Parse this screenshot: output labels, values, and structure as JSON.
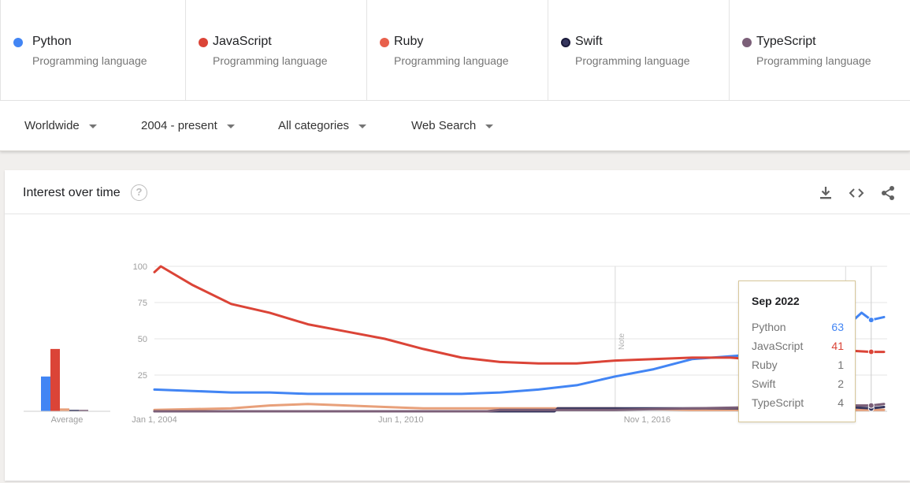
{
  "terms": [
    {
      "name": "Python",
      "kind": "Programming language",
      "color": "#4285f4"
    },
    {
      "name": "JavaScript",
      "kind": "Programming language",
      "color": "#db4437"
    },
    {
      "name": "Ruby",
      "kind": "Programming language",
      "color": "#e8604c"
    },
    {
      "name": "Swift",
      "kind": "Programming language",
      "color": "#36365e"
    },
    {
      "name": "TypeScript",
      "kind": "Programming language",
      "color": "#7b5f78"
    }
  ],
  "filters": {
    "region": "Worldwide",
    "time": "2004 - present",
    "category": "All categories",
    "property": "Web Search"
  },
  "card": {
    "title": "Interest over time",
    "help_glyph": "?",
    "tools": [
      "download-icon",
      "embed-icon",
      "share-icon"
    ]
  },
  "tooltip": {
    "title": "Sep 2022",
    "rows": [
      {
        "label": "Python",
        "value": "63",
        "color": "#4285f4"
      },
      {
        "label": "JavaScript",
        "value": "41",
        "color": "#db4437"
      },
      {
        "label": "Ruby",
        "value": "1",
        "color": "#757575"
      },
      {
        "label": "Swift",
        "value": "2",
        "color": "#757575"
      },
      {
        "label": "TypeScript",
        "value": "4",
        "color": "#757575"
      }
    ]
  },
  "chart_data": {
    "type": "line",
    "title": "",
    "xlabel": "",
    "ylabel": "",
    "ylim": [
      0,
      100
    ],
    "yticks": [
      "100",
      "75",
      "50",
      "25"
    ],
    "xticks": [
      "Jan 1, 2004",
      "Jun 1, 2010",
      "Nov 1, 2016"
    ],
    "xrange": [
      "2004-01",
      "2023-01"
    ],
    "grid": true,
    "notes": [
      {
        "x": "2016-01",
        "label": "Note"
      },
      {
        "x": "2022-01",
        "label": "Note"
      }
    ],
    "hover_x": "2022-09",
    "average_label": "Average",
    "average": [
      {
        "name": "Python",
        "value": 24
      },
      {
        "name": "JavaScript",
        "value": 43
      },
      {
        "name": "Ruby",
        "value": 2
      },
      {
        "name": "Swift",
        "value": 1
      },
      {
        "name": "TypeScript",
        "value": 1
      }
    ],
    "series": [
      {
        "name": "Python",
        "color": "#4285f4",
        "points": [
          [
            "2004-01",
            15
          ],
          [
            "2005-01",
            14
          ],
          [
            "2006-01",
            13
          ],
          [
            "2007-01",
            13
          ],
          [
            "2008-01",
            12
          ],
          [
            "2009-01",
            12
          ],
          [
            "2010-01",
            12
          ],
          [
            "2011-01",
            12
          ],
          [
            "2012-01",
            12
          ],
          [
            "2013-01",
            13
          ],
          [
            "2014-01",
            15
          ],
          [
            "2015-01",
            18
          ],
          [
            "2016-01",
            24
          ],
          [
            "2017-01",
            29
          ],
          [
            "2018-01",
            36
          ],
          [
            "2019-01",
            38
          ],
          [
            "2020-01",
            40
          ],
          [
            "2021-01",
            48
          ],
          [
            "2022-01",
            58
          ],
          [
            "2022-06",
            68
          ],
          [
            "2022-09",
            63
          ],
          [
            "2023-01",
            65
          ]
        ]
      },
      {
        "name": "JavaScript",
        "color": "#db4437",
        "points": [
          [
            "2004-01",
            96
          ],
          [
            "2004-03",
            100
          ],
          [
            "2005-01",
            87
          ],
          [
            "2006-01",
            74
          ],
          [
            "2007-01",
            68
          ],
          [
            "2008-01",
            60
          ],
          [
            "2009-01",
            55
          ],
          [
            "2010-01",
            50
          ],
          [
            "2011-01",
            43
          ],
          [
            "2012-01",
            37
          ],
          [
            "2013-01",
            34
          ],
          [
            "2014-01",
            33
          ],
          [
            "2015-01",
            33
          ],
          [
            "2016-01",
            35
          ],
          [
            "2017-01",
            36
          ],
          [
            "2018-01",
            37
          ],
          [
            "2019-01",
            37
          ],
          [
            "2020-01",
            35
          ],
          [
            "2021-01",
            38
          ],
          [
            "2022-01",
            42
          ],
          [
            "2022-09",
            41
          ],
          [
            "2023-01",
            41
          ]
        ]
      },
      {
        "name": "Ruby",
        "color": "#e8a07a",
        "points": [
          [
            "2004-01",
            1
          ],
          [
            "2006-01",
            2
          ],
          [
            "2007-01",
            4
          ],
          [
            "2008-01",
            5
          ],
          [
            "2009-01",
            4
          ],
          [
            "2010-01",
            3
          ],
          [
            "2011-01",
            2
          ],
          [
            "2012-01",
            2
          ],
          [
            "2014-01",
            2
          ],
          [
            "2016-01",
            2
          ],
          [
            "2018-01",
            1
          ],
          [
            "2020-01",
            1
          ],
          [
            "2023-01",
            1
          ]
        ]
      },
      {
        "name": "Swift",
        "color": "#36365e",
        "points": [
          [
            "2004-01",
            0
          ],
          [
            "2014-06",
            0
          ],
          [
            "2014-07",
            2
          ],
          [
            "2016-01",
            2
          ],
          [
            "2018-01",
            2
          ],
          [
            "2020-01",
            2
          ],
          [
            "2022-01",
            3
          ],
          [
            "2022-09",
            2
          ],
          [
            "2023-01",
            3
          ]
        ]
      },
      {
        "name": "TypeScript",
        "color": "#7b5f78",
        "points": [
          [
            "2004-01",
            0
          ],
          [
            "2012-09",
            0
          ],
          [
            "2013-01",
            1
          ],
          [
            "2016-01",
            1
          ],
          [
            "2018-01",
            2
          ],
          [
            "2020-01",
            3
          ],
          [
            "2022-01",
            4
          ],
          [
            "2022-09",
            4
          ],
          [
            "2023-01",
            5
          ]
        ]
      }
    ]
  }
}
